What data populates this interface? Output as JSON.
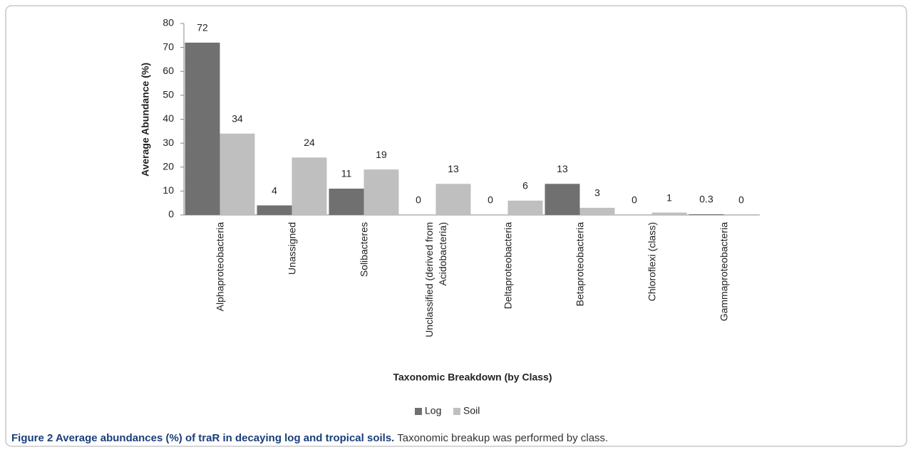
{
  "chart_data": {
    "type": "bar",
    "categories": [
      "Alphaproteobacteria",
      "Unassigned",
      "Solibacteres",
      "Unclassified (derived from Acidobacteria)",
      "Deltaproteobacteria",
      "Betaproteobacteria",
      "Chloroflexi (class)",
      "Gammaproteobacteria"
    ],
    "series": [
      {
        "name": "Log",
        "color": "#707070",
        "values": [
          72,
          4,
          11,
          0,
          0,
          13,
          0,
          0.3
        ]
      },
      {
        "name": "Soil",
        "color": "#bfbfbf",
        "values": [
          34,
          24,
          19,
          13,
          6,
          3,
          1,
          0
        ]
      }
    ],
    "ylabel": "Average Abundance (%)",
    "xlabel": "Taxonomic Breakdown (by Class)",
    "ylim": [
      0,
      80
    ],
    "yticks": [
      0,
      10,
      20,
      30,
      40,
      50,
      60,
      70,
      80
    ],
    "legend": "bottom",
    "grid": false
  },
  "caption": {
    "title": "Figure 2 Average abundances (%) of traR in decaying log and tropical soils.",
    "text": "Taxonomic breakup was performed by class."
  }
}
